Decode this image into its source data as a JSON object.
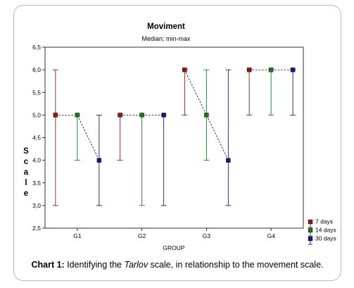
{
  "chart_data": {
    "type": "line",
    "title": "Moviment",
    "subtitle": "Median; min-max",
    "xlabel": "GROUP",
    "ylabel": "Scale",
    "categories": [
      "G1",
      "G2",
      "G3",
      "G4"
    ],
    "ylim": [
      2.5,
      6.5
    ],
    "yticks": [
      "2,5",
      "3,0",
      "3,5",
      "4,0",
      "4,5",
      "5,0",
      "5,5",
      "6,0",
      "6,5"
    ],
    "legend_position": "bottom-right",
    "series": [
      {
        "name": "7 days",
        "color": "#8b1a1a",
        "median": [
          5.0,
          5.0,
          6.0,
          6.0
        ],
        "min": [
          3.0,
          4.0,
          5.0,
          5.0
        ],
        "max": [
          6.0,
          5.0,
          6.0,
          6.0
        ]
      },
      {
        "name": "14 days",
        "color": "#1a7a1a",
        "median": [
          5.0,
          5.0,
          5.0,
          6.0
        ],
        "min": [
          4.0,
          3.0,
          4.0,
          5.0
        ],
        "max": [
          5.0,
          5.0,
          6.0,
          6.0
        ]
      },
      {
        "name": "30 days",
        "color": "#1a1a7a",
        "median": [
          4.0,
          5.0,
          4.0,
          6.0
        ],
        "min": [
          3.0,
          3.0,
          3.0,
          5.0
        ],
        "max": [
          5.0,
          5.0,
          6.0,
          6.0
        ]
      }
    ]
  },
  "caption": {
    "label": "Chart 1:",
    "text_before": " Identifying the ",
    "italic": "Tarlov",
    "text_after": " scale, in relationship to the movement scale."
  }
}
